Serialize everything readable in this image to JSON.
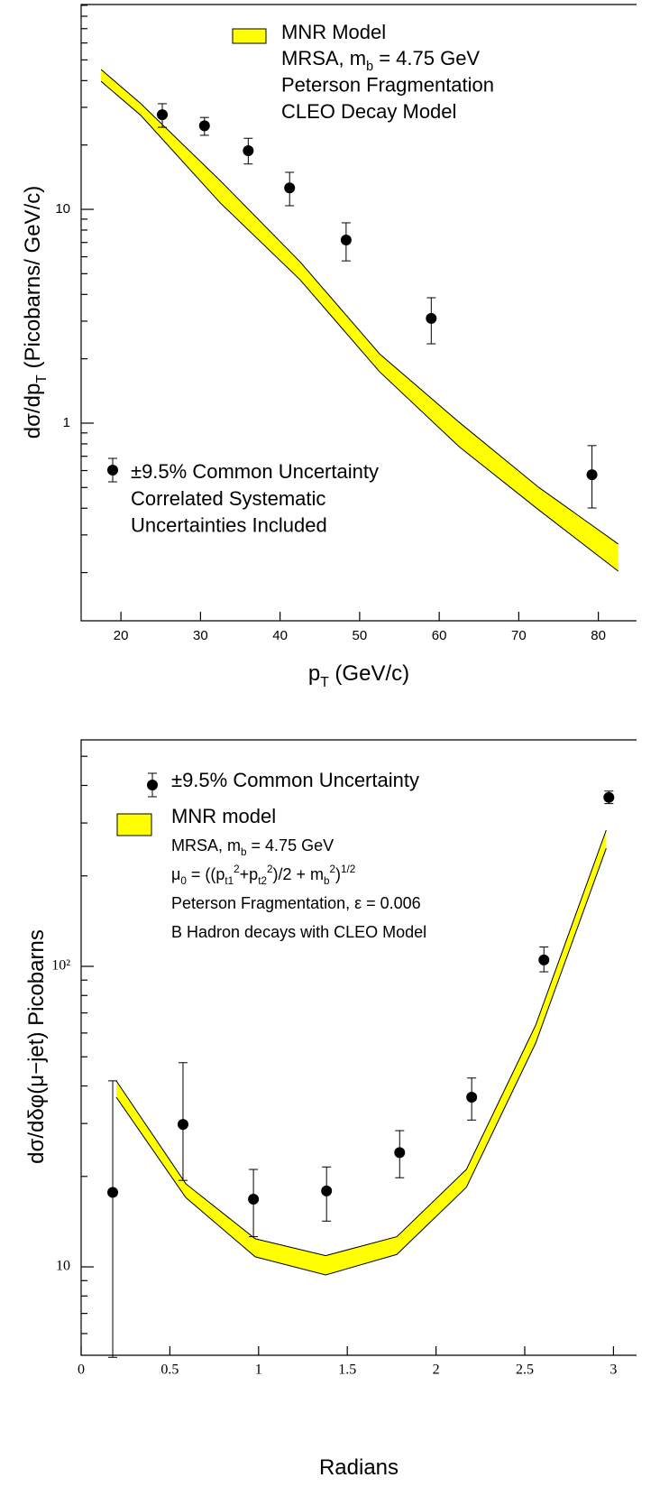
{
  "chart_data": [
    {
      "type": "scatter",
      "log_y": true,
      "xlabel": [
        {
          "text": "p"
        },
        {
          "sub": "T"
        },
        {
          "text": " (GeV/c)"
        }
      ],
      "ylabel": [
        {
          "text": "dσ/dp"
        },
        {
          "sub": "T"
        },
        {
          "text": " (Picobarns/ GeV/c)"
        }
      ],
      "xlim": [
        15,
        84.8
      ],
      "xticks": [
        20,
        30,
        40,
        50,
        60,
        70,
        80
      ],
      "ylim": [
        0.119,
        90.8
      ],
      "yticks": [
        1,
        10
      ],
      "yminorticks": [
        0.2,
        0.3,
        0.4,
        0.5,
        0.6,
        0.7,
        0.8,
        0.9,
        2,
        3,
        4,
        5,
        6,
        7,
        8,
        9,
        20,
        30,
        40,
        50,
        60,
        70,
        80,
        90
      ],
      "series": [
        {
          "name": "MNR Model",
          "color": "#ffff00",
          "x": [
            17.5,
            22.5,
            32.5,
            42.5,
            52.5,
            62.5,
            72.5,
            82.5
          ],
          "upper": [
            45.1,
            31.2,
            13.6,
            5.69,
            2.11,
            1.01,
            0.501,
            0.272
          ],
          "lower": [
            39.7,
            27.5,
            10.7,
            4.69,
            1.74,
            0.776,
            0.393,
            0.203
          ],
          "notes": [
            [
              {
                "text": "MRSA, m"
              },
              {
                "sub": "b"
              },
              {
                "text": " = 4.75 GeV"
              }
            ],
            [
              {
                "text": "Peterson Fragmentation"
              }
            ],
            [
              {
                "text": "CLEO Decay Model"
              }
            ]
          ]
        },
        {
          "name": "±9.5% Common Uncertainty",
          "color": "#000000",
          "x": [
            25.2,
            30.5,
            36,
            41.2,
            48.3,
            59,
            79.2
          ],
          "values": [
            27.7,
            24.6,
            18.8,
            12.6,
            7.19,
            3.09,
            0.574
          ],
          "upper": [
            31.2,
            26.9,
            21.5,
            14.9,
            8.65,
            3.86,
            0.785
          ],
          "lower": [
            24.2,
            22.2,
            16.3,
            10.4,
            5.74,
            2.35,
            0.401
          ],
          "notes": [
            [
              {
                "text": "Correlated Systematic"
              }
            ],
            [
              {
                "text": "Uncertainties Included"
              }
            ]
          ]
        }
      ]
    },
    {
      "type": "scatter",
      "log_y": true,
      "xlabel": [
        {
          "text": "Radians"
        }
      ],
      "ylabel": [
        {
          "text": "dσ/dδφ(μ−jet) Picobarns"
        }
      ],
      "xlim": [
        0,
        3.13
      ],
      "xticks": [
        0,
        0.5,
        1,
        1.5,
        2,
        2.5,
        3
      ],
      "ylim": [
        5.08,
        567
      ],
      "yticks": [
        10,
        {
          "value": 100,
          "label": "10²"
        }
      ],
      "yminorticks": [
        6,
        7,
        8,
        9,
        20,
        30,
        40,
        50,
        60,
        70,
        80,
        90,
        200,
        300,
        400,
        500
      ],
      "series": [
        {
          "name": "MNR model",
          "color": "#ffff00",
          "x": [
            0.198,
            0.59,
            0.981,
            1.378,
            1.779,
            2.171,
            2.562,
            2.959
          ],
          "upper": [
            41.6,
            18.9,
            12.4,
            10.9,
            12.6,
            21.1,
            63.8,
            284
          ],
          "lower": [
            36.7,
            17.0,
            10.8,
            9.4,
            11.0,
            18.4,
            55.6,
            247
          ],
          "notes": [
            [
              {
                "text": "MRSA, m"
              },
              {
                "sub": "b"
              },
              {
                "text": " = 4.75 GeV"
              }
            ],
            [
              {
                "text": "μ"
              },
              {
                "sub": "0"
              },
              {
                "text": " = ((p"
              },
              {
                "sub": "t1"
              },
              {
                "sup": "2"
              },
              {
                "text": "+p"
              },
              {
                "sub": "t2"
              },
              {
                "sup": "2"
              },
              {
                "text": ")/2 + m"
              },
              {
                "sub": "b"
              },
              {
                "sup": "2"
              },
              {
                "text": ")"
              },
              {
                "sup": "1/2"
              }
            ],
            [
              {
                "text": "Peterson Fragmentation, ε = 0.006"
              }
            ],
            [
              {
                "text": "B Hadron decays with CLEO Model"
              }
            ]
          ]
        },
        {
          "name": "±9.5% Common Uncertainty",
          "color": "#000000",
          "x": [
            0.178,
            0.574,
            0.971,
            1.383,
            1.795,
            2.201,
            2.608,
            2.974
          ],
          "values": [
            17.7,
            29.8,
            16.8,
            17.9,
            24.0,
            36.7,
            105,
            365
          ],
          "upper": [
            41.6,
            47.8,
            21.1,
            21.5,
            28.4,
            42.5,
            116,
            383
          ],
          "lower": [
            5,
            19.4,
            12.6,
            14.2,
            19.8,
            30.8,
            95.9,
            348
          ],
          "notes": []
        }
      ]
    }
  ]
}
